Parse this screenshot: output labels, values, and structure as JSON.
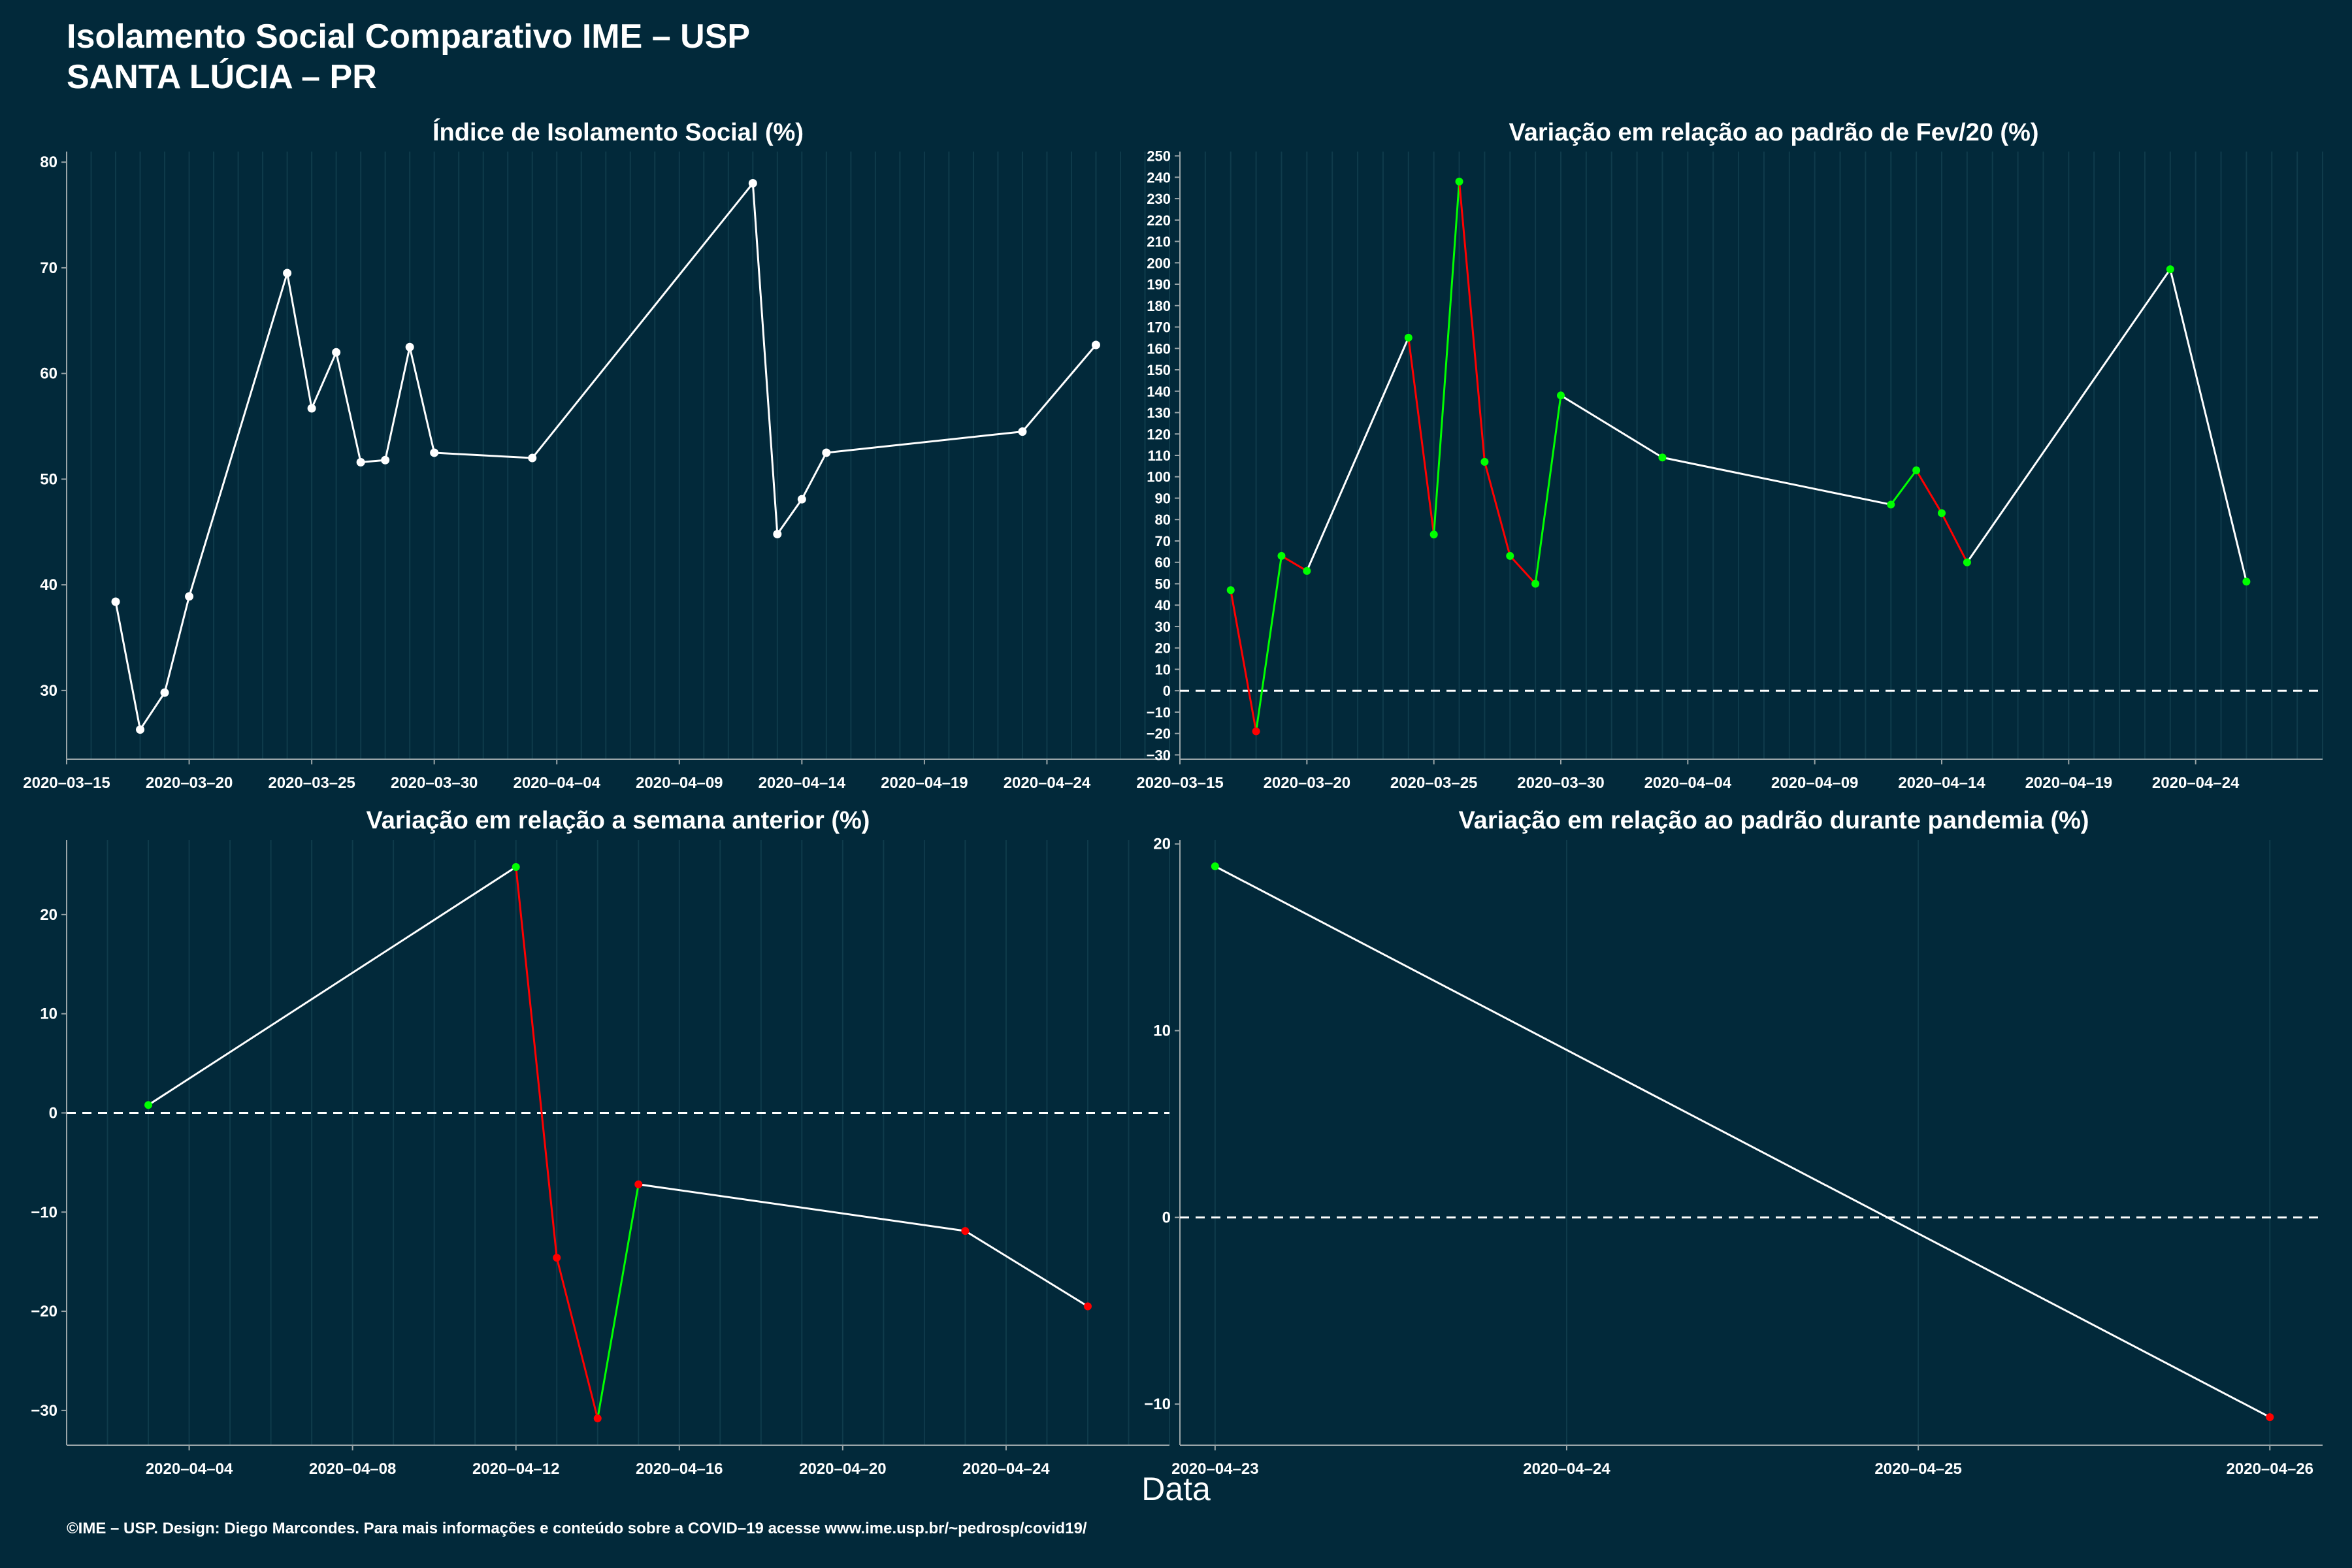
{
  "header": {
    "title_line1": "Isolamento Social Comparativo IME – USP",
    "title_line2": "SANTA LÚCIA – PR"
  },
  "footer": "©IME – USP. Design: Diego Marcondes. Para mais informações e conteúdo sobre a COVID–19 acesse www.ime.usp.br/~pedrosp/covid19/",
  "x_axis_label": "Data",
  "colors": {
    "background": "#02293a",
    "line": "#ffffff",
    "positive": "#00ff00",
    "negative": "#ff0000",
    "axis": "#9aa5a8",
    "grid": "#0f3b4b"
  },
  "chart_data": [
    {
      "type": "line",
      "title": "Índice de Isolamento Social (%)",
      "x_ticks": [
        "2020-03-15",
        "2020-03-20",
        "2020-03-25",
        "2020-03-30",
        "2020-04-04",
        "2020-04-09",
        "2020-04-14",
        "2020-04-19",
        "2020-04-24"
      ],
      "y_ticks": [
        30,
        40,
        50,
        60,
        70,
        80
      ],
      "xlim": [
        "2020-03-15",
        "2020-04-29"
      ],
      "ylim": [
        23.5,
        81
      ],
      "points": [
        {
          "x": "2020-03-17",
          "y": 38.4
        },
        {
          "x": "2020-03-18",
          "y": 26.3
        },
        {
          "x": "2020-03-19",
          "y": 29.8
        },
        {
          "x": "2020-03-20",
          "y": 38.9
        },
        {
          "x": "2020-03-24",
          "y": 69.5
        },
        {
          "x": "2020-03-25",
          "y": 56.7
        },
        {
          "x": "2020-03-26",
          "y": 62.0
        },
        {
          "x": "2020-03-27",
          "y": 51.6
        },
        {
          "x": "2020-03-28",
          "y": 51.8
        },
        {
          "x": "2020-03-29",
          "y": 62.5
        },
        {
          "x": "2020-03-30",
          "y": 52.5
        },
        {
          "x": "2020-04-03",
          "y": 52.0
        },
        {
          "x": "2020-04-12",
          "y": 78.0
        },
        {
          "x": "2020-04-13",
          "y": 44.8
        },
        {
          "x": "2020-04-14",
          "y": 48.1
        },
        {
          "x": "2020-04-15",
          "y": 52.5
        },
        {
          "x": "2020-04-23",
          "y": 54.5
        },
        {
          "x": "2020-04-26",
          "y": 62.7
        }
      ]
    },
    {
      "type": "line",
      "title": "Variação em relação ao padrão de Fev/20 (%)",
      "x_ticks": [
        "2020-03-15",
        "2020-03-20",
        "2020-03-25",
        "2020-03-30",
        "2020-04-04",
        "2020-04-09",
        "2020-04-14",
        "2020-04-19",
        "2020-04-24"
      ],
      "y_ticks": [
        -30,
        -20,
        -10,
        0,
        10,
        20,
        30,
        40,
        50,
        60,
        70,
        80,
        90,
        100,
        110,
        120,
        130,
        140,
        150,
        160,
        170,
        180,
        190,
        200,
        210,
        220,
        230,
        240,
        250
      ],
      "xlim": [
        "2020-03-15",
        "2020-04-29"
      ],
      "ylim": [
        -32,
        252
      ],
      "reference_line": 0,
      "points": [
        {
          "x": "2020-03-17",
          "y": 47
        },
        {
          "x": "2020-03-18",
          "y": -19
        },
        {
          "x": "2020-03-19",
          "y": 63
        },
        {
          "x": "2020-03-20",
          "y": 56
        },
        {
          "x": "2020-03-24",
          "y": 165
        },
        {
          "x": "2020-03-25",
          "y": 73
        },
        {
          "x": "2020-03-26",
          "y": 238
        },
        {
          "x": "2020-03-27",
          "y": 107
        },
        {
          "x": "2020-03-28",
          "y": 63
        },
        {
          "x": "2020-03-29",
          "y": 50
        },
        {
          "x": "2020-03-30",
          "y": 138
        },
        {
          "x": "2020-04-03",
          "y": 109
        },
        {
          "x": "2020-04-12",
          "y": 87
        },
        {
          "x": "2020-04-13",
          "y": 103
        },
        {
          "x": "2020-04-14",
          "y": 83
        },
        {
          "x": "2020-04-15",
          "y": 60
        },
        {
          "x": "2020-04-23",
          "y": 197
        },
        {
          "x": "2020-04-26",
          "y": 51
        }
      ]
    },
    {
      "type": "line",
      "title": "Variação em relação a semana anterior (%)",
      "x_ticks": [
        "2020-04-04",
        "2020-04-08",
        "2020-04-12",
        "2020-04-16",
        "2020-04-20",
        "2020-04-24"
      ],
      "y_ticks": [
        -30,
        -20,
        -10,
        0,
        10,
        20
      ],
      "xlim": [
        "2020-04-01",
        "2020-04-28"
      ],
      "ylim": [
        -33.5,
        27.5
      ],
      "reference_line": 0,
      "points": [
        {
          "x": "2020-04-03",
          "y": 0.8
        },
        {
          "x": "2020-04-12",
          "y": 24.8
        },
        {
          "x": "2020-04-13",
          "y": -14.6
        },
        {
          "x": "2020-04-14",
          "y": -30.8
        },
        {
          "x": "2020-04-15",
          "y": -7.2
        },
        {
          "x": "2020-04-23",
          "y": -11.9
        },
        {
          "x": "2020-04-26",
          "y": -19.5
        }
      ]
    },
    {
      "type": "line",
      "title": "Variação em relação ao padrão durante pandemia (%)",
      "x_ticks": [
        "2020-04-23",
        "2020-04-24",
        "2020-04-25",
        "2020-04-26"
      ],
      "y_ticks": [
        -10,
        0,
        10,
        20
      ],
      "xlim": [
        "2020-04-22.9",
        "2020-04-26.15"
      ],
      "ylim": [
        -12.2,
        20.2
      ],
      "reference_line": 0,
      "points": [
        {
          "x": "2020-04-23",
          "y": 18.8
        },
        {
          "x": "2020-04-26",
          "y": -10.7
        }
      ]
    }
  ]
}
